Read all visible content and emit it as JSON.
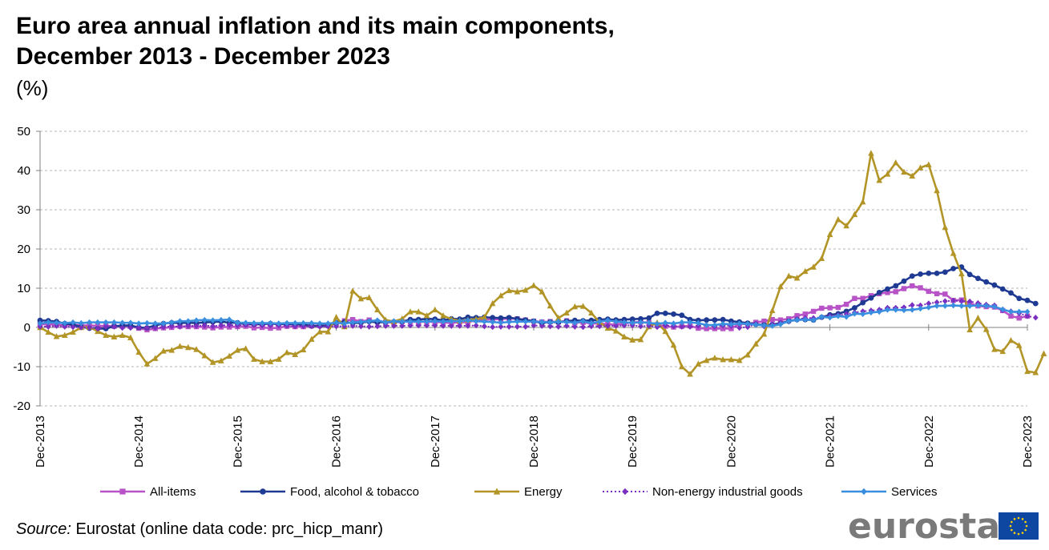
{
  "title_line1": "Euro area annual inflation and its main components,",
  "title_line2": "December 2013 - December 2023",
  "unit": "(%)",
  "source_label": "Source:",
  "source_text": " Eurostat (online data code: prc_hicp_manr)",
  "logo_text": "eurostat",
  "chart_data": {
    "type": "line",
    "title": "Euro area annual inflation and its main components, December 2013 - December 2023",
    "ylabel": "(%)",
    "ylim": [
      -20,
      50
    ],
    "yticks": [
      -20,
      -10,
      0,
      10,
      20,
      30,
      40,
      50
    ],
    "xtick_labels": [
      "Dec-2013",
      "Dec-2014",
      "Dec-2015",
      "Dec-2016",
      "Dec-2017",
      "Dec-2018",
      "Dec-2019",
      "Dec-2020",
      "Dec-2021",
      "Dec-2022",
      "Dec-2023"
    ],
    "x_start": "2013-12",
    "x_end": "2023-12",
    "grid": "horizontal dashed",
    "legend": "bottom",
    "series": [
      {
        "name": "All-items",
        "color": "#b752c7",
        "marker": "square",
        "values": [
          0.8,
          0.8,
          0.7,
          0.5,
          0.7,
          0.5,
          0.5,
          0.4,
          0.4,
          0.3,
          0.4,
          0.3,
          -0.2,
          -0.6,
          -0.3,
          -0.1,
          0.0,
          0.3,
          0.2,
          0.2,
          0.1,
          -0.1,
          0.1,
          0.1,
          0.2,
          0.3,
          -0.1,
          0.0,
          -0.2,
          -0.1,
          0.3,
          0.2,
          0.2,
          0.4,
          0.5,
          0.6,
          1.1,
          1.7,
          2.0,
          1.5,
          1.9,
          1.4,
          1.3,
          1.3,
          1.5,
          1.5,
          1.4,
          1.5,
          1.4,
          1.3,
          1.1,
          1.4,
          1.3,
          1.9,
          2.0,
          2.1,
          2.1,
          2.3,
          2.2,
          1.9,
          1.6,
          1.4,
          1.5,
          1.4,
          1.7,
          1.2,
          1.3,
          1.0,
          1.0,
          0.8,
          0.7,
          1.0,
          1.3,
          1.4,
          1.2,
          0.7,
          0.3,
          0.1,
          0.3,
          0.4,
          -0.2,
          -0.3,
          -0.3,
          -0.3,
          -0.3,
          0.9,
          0.9,
          1.3,
          1.6,
          2.0,
          1.9,
          2.2,
          3.0,
          3.4,
          4.1,
          4.9,
          5.0,
          5.1,
          5.9,
          7.4,
          7.4,
          8.1,
          8.6,
          8.9,
          9.1,
          9.9,
          10.6,
          10.1,
          9.2,
          8.6,
          8.5,
          6.9,
          7.0,
          6.1,
          5.5,
          5.3,
          5.2,
          4.3,
          2.9,
          2.4,
          2.9
        ]
      },
      {
        "name": "Food, alcohol & tobacco",
        "color": "#1f3a93",
        "marker": "circle",
        "values": [
          1.8,
          1.7,
          1.5,
          1.0,
          0.7,
          0.1,
          -0.2,
          -0.3,
          -0.3,
          0.3,
          0.5,
          0.5,
          0.0,
          -0.1,
          0.5,
          1.0,
          1.2,
          1.1,
          1.2,
          1.1,
          1.3,
          1.4,
          1.5,
          1.2,
          1.2,
          0.8,
          0.8,
          0.8,
          1.0,
          0.8,
          0.9,
          0.8,
          0.7,
          0.4,
          0.4,
          0.4,
          1.2,
          1.4,
          1.1,
          1.2,
          1.5,
          1.3,
          1.4,
          1.4,
          1.5,
          2.0,
          2.0,
          2.2,
          2.1,
          1.8,
          2.2,
          2.1,
          2.6,
          2.5,
          2.6,
          2.5,
          2.4,
          2.5,
          2.2,
          1.9,
          1.6,
          1.1,
          1.4,
          1.3,
          1.6,
          1.8,
          1.7,
          1.8,
          2.0,
          2.1,
          1.9,
          2.0,
          2.1,
          2.2,
          2.4,
          3.6,
          3.6,
          3.4,
          3.1,
          2.0,
          1.8,
          1.9,
          1.9,
          2.0,
          1.6,
          1.4,
          1.1,
          0.8,
          0.6,
          0.7,
          1.1,
          1.6,
          2.0,
          2.0,
          1.9,
          2.6,
          3.2,
          3.5,
          4.1,
          5.0,
          6.3,
          7.5,
          8.9,
          9.8,
          10.6,
          11.8,
          13.1,
          13.6,
          13.8,
          13.8,
          14.1,
          15.0,
          15.4,
          13.5,
          12.5,
          11.6,
          10.8,
          9.8,
          8.8,
          7.4,
          6.9,
          6.1
        ]
      },
      {
        "name": "Energy",
        "color": "#b29526",
        "marker": "triangle",
        "values": [
          0.0,
          -1.2,
          -2.3,
          -2.0,
          -1.2,
          0.0,
          0.1,
          -1.0,
          -2.0,
          -2.4,
          -2.0,
          -2.6,
          -6.3,
          -9.3,
          -7.9,
          -6.0,
          -5.8,
          -4.8,
          -5.1,
          -5.6,
          -7.2,
          -8.9,
          -8.5,
          -7.3,
          -5.8,
          -5.4,
          -8.1,
          -8.7,
          -8.7,
          -8.1,
          -6.4,
          -6.9,
          -5.7,
          -3.0,
          -1.1,
          -1.1,
          2.6,
          0.2,
          9.3,
          7.3,
          7.6,
          4.5,
          1.9,
          1.5,
          2.2,
          4.0,
          4.0,
          3.0,
          4.5,
          3.0,
          2.1,
          1.7,
          1.9,
          2.1,
          2.6,
          6.1,
          8.1,
          9.4,
          9.1,
          9.5,
          10.7,
          9.1,
          5.5,
          2.4,
          3.7,
          5.3,
          5.4,
          3.7,
          1.3,
          -0.2,
          -0.9,
          -2.4,
          -3.2,
          -3.1,
          0.2,
          1.2,
          -1.0,
          -4.5,
          -10.0,
          -11.9,
          -9.3,
          -8.4,
          -7.8,
          -8.2,
          -8.2,
          -8.4,
          -7.0,
          -4.2,
          -1.7,
          4.3,
          10.4,
          13.1,
          12.6,
          14.3,
          15.4,
          17.6,
          23.7,
          27.5,
          25.9,
          28.8,
          32.0,
          44.4,
          37.5,
          39.1,
          42.0,
          39.6,
          38.6,
          40.7,
          41.5,
          34.9,
          25.5,
          18.9,
          13.7,
          -0.6,
          2.4,
          -0.5,
          -5.6,
          -6.1,
          -3.3,
          -4.6,
          -11.2,
          -11.5,
          -6.7
        ]
      },
      {
        "name": "Non-energy industrial goods",
        "color": "#7a2fc0",
        "marker": "diamond",
        "dashed": true,
        "values": [
          0.2,
          0.2,
          0.4,
          0.2,
          0.1,
          0.0,
          0.0,
          -0.3,
          0.3,
          0.2,
          -0.1,
          -0.1,
          0.0,
          -0.1,
          -0.1,
          0.1,
          0.3,
          0.2,
          0.4,
          0.4,
          0.5,
          0.3,
          0.5,
          0.6,
          0.5,
          0.7,
          0.7,
          0.5,
          0.5,
          0.5,
          0.4,
          0.3,
          0.3,
          0.3,
          0.2,
          0.3,
          0.3,
          0.3,
          0.4,
          0.3,
          0.2,
          0.3,
          0.4,
          0.4,
          0.4,
          0.5,
          0.5,
          0.5,
          0.5,
          0.4,
          0.4,
          0.4,
          0.4,
          0.5,
          0.3,
          0.1,
          0.2,
          0.2,
          0.2,
          0.2,
          0.5,
          0.4,
          0.3,
          0.2,
          0.4,
          0.2,
          0.1,
          0.3,
          0.3,
          0.4,
          0.4,
          0.5,
          0.5,
          0.3,
          0.4,
          0.1,
          0.5,
          0.3,
          0.2,
          0.2,
          0.4,
          0.6,
          0.2,
          0.5,
          0.4,
          -0.1,
          0.1,
          0.9,
          0.3,
          0.7,
          1.2,
          1.5,
          2.1,
          2.4,
          2.4,
          2.6,
          2.9,
          3.1,
          3.4,
          3.8,
          4.1,
          4.3,
          4.5,
          5.0,
          5.0,
          5.1,
          5.7,
          5.6,
          6.1,
          6.4,
          6.7,
          6.8,
          6.7,
          6.6,
          6.2,
          5.8,
          5.6,
          4.4,
          4.1,
          3.6,
          2.9,
          2.5
        ]
      },
      {
        "name": "Services",
        "color": "#3a8ee0",
        "marker": "diamond",
        "values": [
          1.0,
          1.3,
          1.2,
          1.1,
          1.3,
          1.1,
          1.3,
          1.3,
          1.3,
          1.3,
          1.2,
          1.2,
          1.0,
          1.1,
          1.0,
          1.0,
          1.3,
          1.6,
          1.6,
          1.8,
          1.9,
          1.8,
          1.9,
          2.0,
          1.2,
          1.2,
          1.1,
          1.1,
          1.1,
          1.0,
          1.1,
          1.1,
          1.1,
          1.1,
          1.0,
          1.0,
          1.2,
          1.0,
          1.3,
          1.4,
          1.6,
          1.8,
          1.3,
          1.6,
          1.5,
          1.5,
          1.5,
          1.5,
          1.6,
          1.5,
          1.6,
          1.6,
          1.8,
          1.6,
          1.5,
          1.4,
          1.2,
          1.4,
          1.5,
          1.5,
          1.5,
          1.4,
          1.3,
          1.5,
          1.4,
          1.2,
          1.6,
          1.1,
          1.5,
          1.8,
          1.5,
          1.3,
          1.2,
          1.3,
          1.2,
          0.9,
          1.2,
          1.0,
          1.3,
          1.3,
          1.1,
          0.6,
          0.6,
          0.9,
          0.8,
          1.0,
          0.9,
          0.7,
          0.5,
          0.4,
          0.8,
          1.6,
          1.9,
          2.0,
          1.9,
          2.7,
          2.5,
          2.9,
          2.7,
          3.5,
          3.4,
          3.8,
          4.0,
          4.5,
          4.5,
          4.4,
          4.5,
          4.8,
          5.1,
          5.5,
          5.5,
          5.6,
          5.5,
          5.5,
          5.6,
          5.5,
          5.3,
          4.6,
          4.0,
          4.0,
          4.0
        ]
      }
    ]
  }
}
